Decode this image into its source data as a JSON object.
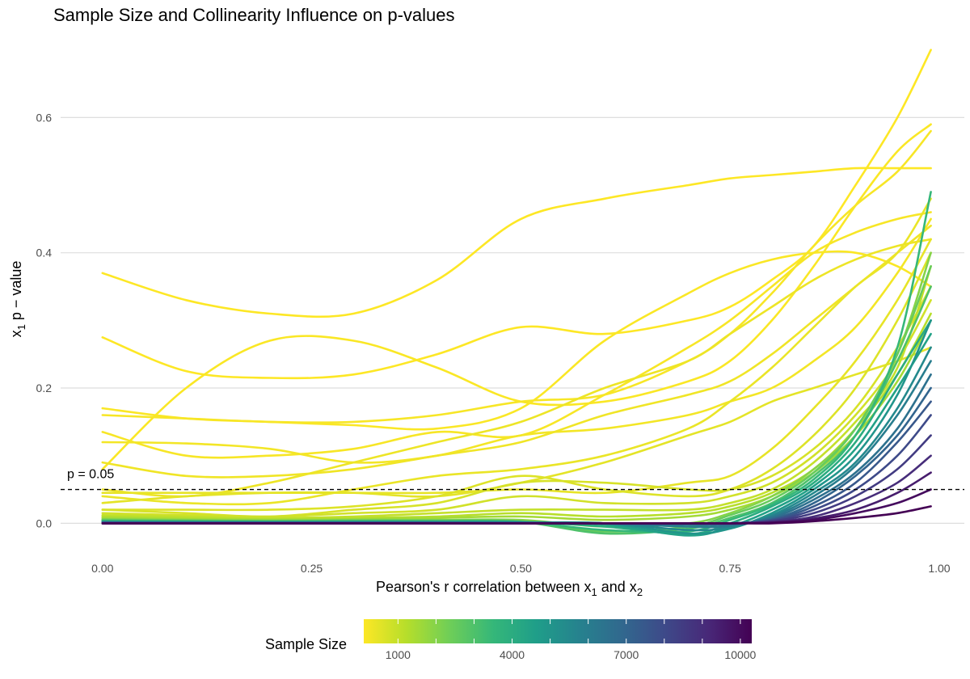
{
  "chart_data": {
    "type": "line",
    "title": "Sample Size and Collinearity Influence on p-values",
    "xlabel": {
      "main": "Pearson's r correlation between x",
      "sub1": "1",
      "mid": " and x",
      "sub2": "2"
    },
    "ylabel": {
      "main": "x",
      "sub": "1",
      "rest": " p − value"
    },
    "xlim": [
      -0.05,
      1.03
    ],
    "ylim": [
      -0.045,
      0.72
    ],
    "x_ticks": [
      0,
      0.25,
      0.5,
      0.75,
      1
    ],
    "x_tick_labels": [
      "0.00",
      "0.25",
      "0.50",
      "0.75",
      "1.00"
    ],
    "y_ticks": [
      0,
      0.2,
      0.4,
      0.6
    ],
    "y_tick_labels": [
      "0.0",
      "0.2",
      "0.4",
      "0.6"
    ],
    "grid": true,
    "reference_line": {
      "y": 0.05,
      "style": "dashed",
      "label": "p = 0.05"
    },
    "legend": {
      "title": "Sample Size",
      "position": "bottom",
      "range": [
        100,
        10300
      ],
      "ticks": [
        1000,
        4000,
        7000,
        10000
      ],
      "tick_labels": [
        "1000",
        "4000",
        "7000",
        "10000"
      ],
      "colors": [
        "#fde725",
        "#b5de2b",
        "#6ece58",
        "#35b779",
        "#1f9e89",
        "#26828e",
        "#31688e",
        "#3e4989",
        "#482878",
        "#440154"
      ]
    },
    "x": [
      0,
      0.1,
      0.2,
      0.3,
      0.4,
      0.5,
      0.6,
      0.7,
      0.75,
      0.8,
      0.85,
      0.9,
      0.95,
      0.99
    ],
    "series": [
      {
        "n": 100,
        "values": [
          0.37,
          0.33,
          0.31,
          0.31,
          0.36,
          0.45,
          0.48,
          0.5,
          0.51,
          0.515,
          0.52,
          0.525,
          0.525,
          0.525
        ]
      },
      {
        "n": 100,
        "values": [
          0.275,
          0.225,
          0.215,
          0.22,
          0.25,
          0.29,
          0.28,
          0.3,
          0.32,
          0.36,
          0.41,
          0.5,
          0.6,
          0.7
        ]
      },
      {
        "n": 150,
        "values": [
          0.08,
          0.2,
          0.27,
          0.27,
          0.23,
          0.18,
          0.18,
          0.21,
          0.24,
          0.3,
          0.38,
          0.47,
          0.55,
          0.59
        ]
      },
      {
        "n": 150,
        "values": [
          0.17,
          0.155,
          0.15,
          0.145,
          0.14,
          0.17,
          0.27,
          0.34,
          0.37,
          0.39,
          0.4,
          0.4,
          0.38,
          0.35
        ]
      },
      {
        "n": 200,
        "values": [
          0.16,
          0.155,
          0.15,
          0.15,
          0.16,
          0.18,
          0.19,
          0.24,
          0.28,
          0.34,
          0.41,
          0.47,
          0.52,
          0.58
        ]
      },
      {
        "n": 200,
        "values": [
          0.135,
          0.1,
          0.1,
          0.11,
          0.135,
          0.13,
          0.19,
          0.26,
          0.3,
          0.35,
          0.4,
          0.43,
          0.45,
          0.46
        ]
      },
      {
        "n": 250,
        "values": [
          0.12,
          0.118,
          0.11,
          0.09,
          0.1,
          0.13,
          0.14,
          0.16,
          0.18,
          0.2,
          0.24,
          0.29,
          0.37,
          0.45
        ]
      },
      {
        "n": 300,
        "values": [
          0.09,
          0.07,
          0.07,
          0.08,
          0.1,
          0.12,
          0.16,
          0.19,
          0.21,
          0.25,
          0.3,
          0.35,
          0.4,
          0.44
        ]
      },
      {
        "n": 350,
        "values": [
          0.05,
          0.04,
          0.06,
          0.09,
          0.12,
          0.15,
          0.2,
          0.24,
          0.28,
          0.32,
          0.36,
          0.39,
          0.41,
          0.42
        ]
      },
      {
        "n": 400,
        "values": [
          0.04,
          0.03,
          0.03,
          0.05,
          0.07,
          0.08,
          0.1,
          0.14,
          0.18,
          0.23,
          0.29,
          0.35,
          0.4,
          0.48
        ]
      },
      {
        "n": 450,
        "values": [
          0.045,
          0.045,
          0.045,
          0.045,
          0.045,
          0.05,
          0.045,
          0.06,
          0.07,
          0.11,
          0.17,
          0.24,
          0.33,
          0.42
        ]
      },
      {
        "n": 500,
        "values": [
          0.03,
          0.04,
          0.045,
          0.045,
          0.04,
          0.06,
          0.09,
          0.13,
          0.15,
          0.18,
          0.2,
          0.22,
          0.24,
          0.26
        ]
      },
      {
        "n": 600,
        "values": [
          0.02,
          0.02,
          0.02,
          0.025,
          0.04,
          0.07,
          0.05,
          0.04,
          0.05,
          0.08,
          0.13,
          0.2,
          0.3,
          0.4
        ]
      },
      {
        "n": 700,
        "values": [
          0.02,
          0.015,
          0.01,
          0.02,
          0.03,
          0.06,
          0.06,
          0.05,
          0.05,
          0.07,
          0.11,
          0.17,
          0.26,
          0.35
        ]
      },
      {
        "n": 800,
        "values": [
          0.015,
          0.012,
          0.01,
          0.015,
          0.02,
          0.04,
          0.03,
          0.03,
          0.04,
          0.06,
          0.1,
          0.16,
          0.24,
          0.33
        ]
      },
      {
        "n": 1000,
        "values": [
          0.012,
          0.01,
          0.008,
          0.01,
          0.015,
          0.02,
          0.02,
          0.02,
          0.03,
          0.05,
          0.09,
          0.15,
          0.23,
          0.38
        ]
      },
      {
        "n": 1200,
        "values": [
          0.01,
          0.008,
          0.006,
          0.008,
          0.01,
          0.015,
          0.01,
          0.015,
          0.025,
          0.045,
          0.08,
          0.14,
          0.22,
          0.31
        ]
      },
      {
        "n": 1500,
        "values": [
          0.008,
          0.006,
          0.005,
          0.006,
          0.008,
          0.01,
          0.005,
          0.01,
          0.02,
          0.04,
          0.075,
          0.13,
          0.21,
          0.3
        ]
      },
      {
        "n": 2000,
        "values": [
          0.006,
          0.005,
          0.004,
          0.005,
          0.005,
          0.005,
          -0.005,
          0.0,
          0.015,
          0.04,
          0.08,
          0.14,
          0.25,
          0.4
        ]
      },
      {
        "n": 2500,
        "values": [
          0.005,
          0.004,
          0.003,
          0.004,
          0.004,
          0.003,
          -0.012,
          -0.005,
          0.012,
          0.035,
          0.075,
          0.14,
          0.25,
          0.38
        ]
      },
      {
        "n": 3000,
        "values": [
          0.004,
          0.003,
          0.003,
          0.003,
          0.003,
          0.002,
          -0.015,
          -0.008,
          0.008,
          0.03,
          0.07,
          0.13,
          0.24,
          0.35
        ]
      },
      {
        "n": 3500,
        "values": [
          0.003,
          0.003,
          0.002,
          0.003,
          0.003,
          0.002,
          -0.01,
          -0.012,
          0.005,
          0.028,
          0.065,
          0.13,
          0.26,
          0.49
        ]
      },
      {
        "n": 4000,
        "values": [
          0.003,
          0.002,
          0.002,
          0.002,
          0.002,
          0.002,
          -0.005,
          -0.016,
          0.0,
          0.025,
          0.06,
          0.12,
          0.22,
          0.3
        ]
      },
      {
        "n": 4500,
        "values": [
          0.002,
          0.002,
          0.002,
          0.002,
          0.002,
          0.002,
          -0.002,
          -0.018,
          -0.005,
          0.02,
          0.055,
          0.11,
          0.2,
          0.28
        ]
      },
      {
        "n": 5000,
        "values": [
          0.002,
          0.002,
          0.001,
          0.002,
          0.002,
          0.001,
          0.0,
          -0.015,
          -0.008,
          0.015,
          0.05,
          0.1,
          0.19,
          0.3
        ]
      },
      {
        "n": 5500,
        "values": [
          0.002,
          0.001,
          0.001,
          0.001,
          0.001,
          0.001,
          0.0,
          -0.01,
          -0.006,
          0.012,
          0.045,
          0.09,
          0.17,
          0.26
        ]
      },
      {
        "n": 6000,
        "values": [
          0.001,
          0.001,
          0.001,
          0.001,
          0.001,
          0.001,
          0.0,
          -0.005,
          -0.004,
          0.01,
          0.04,
          0.085,
          0.16,
          0.24
        ]
      },
      {
        "n": 6500,
        "values": [
          0.001,
          0.001,
          0.001,
          0.001,
          0.001,
          0.001,
          0.0,
          -0.002,
          -0.002,
          0.008,
          0.035,
          0.075,
          0.14,
          0.22
        ]
      },
      {
        "n": 7000,
        "values": [
          0.001,
          0.001,
          0.001,
          0.001,
          0.001,
          0.0,
          0.0,
          0.0,
          0.0,
          0.006,
          0.03,
          0.07,
          0.13,
          0.2
        ]
      },
      {
        "n": 7500,
        "values": [
          0.001,
          0.0,
          0.0,
          0.0,
          0.0,
          0.0,
          0.0,
          0.0,
          0.0,
          0.005,
          0.025,
          0.06,
          0.12,
          0.18
        ]
      },
      {
        "n": 8000,
        "values": [
          0.0,
          0.0,
          0.0,
          0.0,
          0.0,
          0.0,
          0.0,
          0.0,
          0.0,
          0.004,
          0.02,
          0.05,
          0.1,
          0.16
        ]
      },
      {
        "n": 8500,
        "values": [
          0.0,
          0.0,
          0.0,
          0.0,
          0.0,
          0.0,
          0.0,
          0.0,
          0.0,
          0.003,
          0.015,
          0.04,
          0.08,
          0.13
        ]
      },
      {
        "n": 9000,
        "values": [
          0.0,
          0.0,
          0.0,
          0.0,
          0.0,
          0.0,
          0.0,
          0.0,
          0.0,
          0.002,
          0.01,
          0.03,
          0.06,
          0.1
        ]
      },
      {
        "n": 9500,
        "values": [
          0.0,
          0.0,
          0.0,
          0.0,
          0.0,
          0.0,
          0.0,
          0.0,
          0.0,
          0.001,
          0.007,
          0.02,
          0.045,
          0.075
        ]
      },
      {
        "n": 10000,
        "values": [
          0.0,
          0.0,
          0.0,
          0.0,
          0.0,
          0.0,
          0.0,
          0.0,
          0.0,
          0.001,
          0.005,
          0.015,
          0.03,
          0.05
        ]
      },
      {
        "n": 10300,
        "values": [
          0.0,
          0.0,
          0.0,
          0.0,
          0.0,
          0.0,
          0.0,
          0.0,
          0.0,
          0.0,
          0.003,
          0.008,
          0.015,
          0.025
        ]
      }
    ]
  }
}
